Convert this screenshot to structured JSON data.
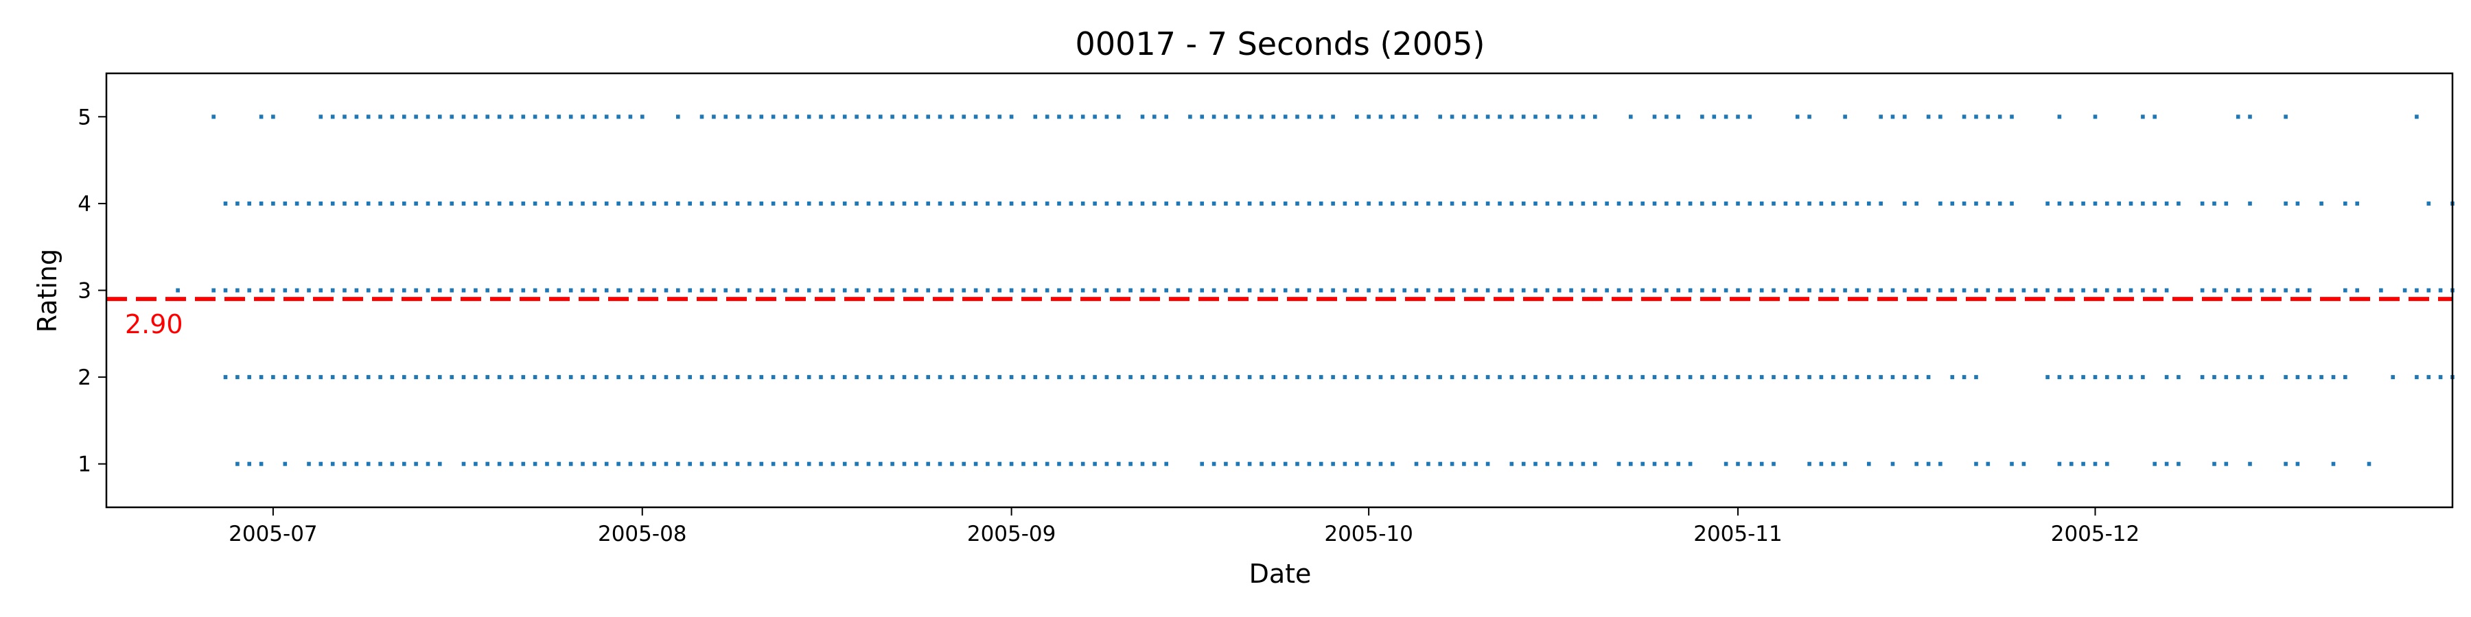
{
  "chart_data": {
    "type": "scatter",
    "title": "00017 - 7 Seconds (2005)",
    "xlabel": "Date",
    "ylabel": "Rating",
    "x_range": [
      "2005-06-17",
      "2005-12-31"
    ],
    "ylim": [
      0.5,
      5.5
    ],
    "x_ticks": [
      "2005-07",
      "2005-08",
      "2005-09",
      "2005-10",
      "2005-11",
      "2005-12"
    ],
    "y_ticks": [
      1,
      2,
      3,
      4,
      5
    ],
    "grid": false,
    "point_color": "#1f77b4",
    "mean_line": {
      "value": 2.9,
      "label": "2.90",
      "color": "#ff0000",
      "style": "dashed"
    },
    "series": [
      {
        "rating": 5,
        "runs": [
          [
            "2005-06-26",
            "2005-06-26"
          ],
          [
            "2005-06-30",
            "2005-07-01"
          ],
          [
            "2005-07-05",
            "2005-08-01"
          ],
          [
            "2005-08-04",
            "2005-08-04"
          ],
          [
            "2005-08-06",
            "2005-09-01"
          ],
          [
            "2005-09-03",
            "2005-09-10"
          ],
          [
            "2005-09-12",
            "2005-09-14"
          ],
          [
            "2005-09-16",
            "2005-09-28"
          ],
          [
            "2005-09-30",
            "2005-10-05"
          ],
          [
            "2005-10-07",
            "2005-10-20"
          ],
          [
            "2005-10-23",
            "2005-10-23"
          ],
          [
            "2005-10-25",
            "2005-10-27"
          ],
          [
            "2005-10-29",
            "2005-11-02"
          ],
          [
            "2005-11-06",
            "2005-11-07"
          ],
          [
            "2005-11-10",
            "2005-11-10"
          ],
          [
            "2005-11-13",
            "2005-11-15"
          ],
          [
            "2005-11-17",
            "2005-11-18"
          ],
          [
            "2005-11-20",
            "2005-11-24"
          ],
          [
            "2005-11-28",
            "2005-11-28"
          ],
          [
            "2005-12-01",
            "2005-12-01"
          ],
          [
            "2005-12-05",
            "2005-12-06"
          ],
          [
            "2005-12-13",
            "2005-12-14"
          ],
          [
            "2005-12-17",
            "2005-12-17"
          ],
          [
            "2005-12-28",
            "2005-12-28"
          ]
        ]
      },
      {
        "rating": 4,
        "runs": [
          [
            "2005-06-27",
            "2005-11-13"
          ],
          [
            "2005-11-15",
            "2005-11-16"
          ],
          [
            "2005-11-18",
            "2005-11-24"
          ],
          [
            "2005-11-27",
            "2005-12-08"
          ],
          [
            "2005-12-10",
            "2005-12-12"
          ],
          [
            "2005-12-14",
            "2005-12-14"
          ],
          [
            "2005-12-17",
            "2005-12-18"
          ],
          [
            "2005-12-20",
            "2005-12-20"
          ],
          [
            "2005-12-22",
            "2005-12-23"
          ],
          [
            "2005-12-29",
            "2005-12-29"
          ],
          [
            "2005-12-31",
            "2005-12-31"
          ]
        ]
      },
      {
        "rating": 3,
        "runs": [
          [
            "2005-06-23",
            "2005-06-23"
          ],
          [
            "2005-06-26",
            "2005-12-07"
          ],
          [
            "2005-12-10",
            "2005-12-19"
          ],
          [
            "2005-12-22",
            "2005-12-23"
          ],
          [
            "2005-12-25",
            "2005-12-25"
          ],
          [
            "2005-12-27",
            "2005-12-31"
          ]
        ]
      },
      {
        "rating": 2,
        "runs": [
          [
            "2005-06-27",
            "2005-11-17"
          ],
          [
            "2005-11-19",
            "2005-11-21"
          ],
          [
            "2005-11-27",
            "2005-12-05"
          ],
          [
            "2005-12-07",
            "2005-12-08"
          ],
          [
            "2005-12-10",
            "2005-12-15"
          ],
          [
            "2005-12-17",
            "2005-12-22"
          ],
          [
            "2005-12-26",
            "2005-12-26"
          ],
          [
            "2005-12-28",
            "2005-12-31"
          ]
        ]
      },
      {
        "rating": 1,
        "runs": [
          [
            "2005-06-28",
            "2005-06-30"
          ],
          [
            "2005-07-02",
            "2005-07-02"
          ],
          [
            "2005-07-04",
            "2005-07-15"
          ],
          [
            "2005-07-17",
            "2005-09-14"
          ],
          [
            "2005-09-17",
            "2005-10-03"
          ],
          [
            "2005-10-05",
            "2005-10-11"
          ],
          [
            "2005-10-13",
            "2005-10-20"
          ],
          [
            "2005-10-22",
            "2005-10-28"
          ],
          [
            "2005-10-31",
            "2005-11-04"
          ],
          [
            "2005-11-07",
            "2005-11-10"
          ],
          [
            "2005-11-12",
            "2005-11-12"
          ],
          [
            "2005-11-14",
            "2005-11-14"
          ],
          [
            "2005-11-16",
            "2005-11-18"
          ],
          [
            "2005-11-21",
            "2005-11-22"
          ],
          [
            "2005-11-24",
            "2005-11-25"
          ],
          [
            "2005-11-28",
            "2005-12-02"
          ],
          [
            "2005-12-06",
            "2005-12-08"
          ],
          [
            "2005-12-11",
            "2005-12-12"
          ],
          [
            "2005-12-14",
            "2005-12-14"
          ],
          [
            "2005-12-17",
            "2005-12-18"
          ],
          [
            "2005-12-21",
            "2005-12-21"
          ],
          [
            "2005-12-24",
            "2005-12-24"
          ]
        ]
      }
    ]
  }
}
